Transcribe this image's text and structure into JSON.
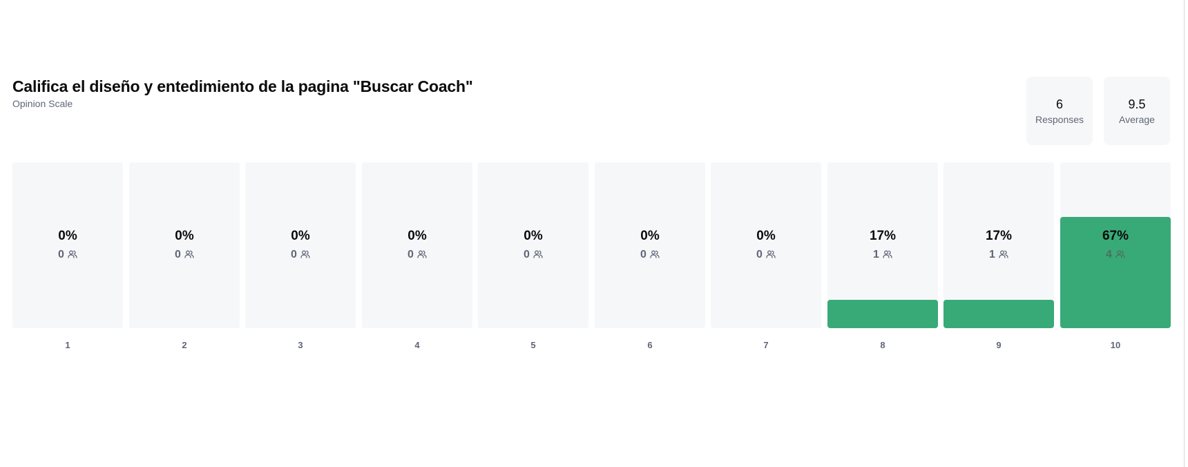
{
  "question": {
    "title": "Califica el diseño y entedimiento de la pagina \"Buscar Coach\"",
    "type": "Opinion Scale"
  },
  "stats": {
    "responses_value": "6",
    "responses_label": "Responses",
    "average_value": "9.5",
    "average_label": "Average"
  },
  "chart_data": {
    "type": "bar",
    "categories": [
      "1",
      "2",
      "3",
      "4",
      "5",
      "6",
      "7",
      "8",
      "9",
      "10"
    ],
    "percent_labels": [
      "0%",
      "0%",
      "0%",
      "0%",
      "0%",
      "0%",
      "0%",
      "17%",
      "17%",
      "67%"
    ],
    "counts": [
      0,
      0,
      0,
      0,
      0,
      0,
      0,
      1,
      1,
      4
    ],
    "series": [
      {
        "values": [
          0,
          0,
          0,
          0,
          0,
          0,
          0,
          17,
          17,
          67
        ]
      }
    ],
    "ylim": [
      0,
      100
    ],
    "grid": false,
    "bar_color": "#38aa78",
    "track_color": "#f6f7f9",
    "count_icon": "people-icon"
  }
}
